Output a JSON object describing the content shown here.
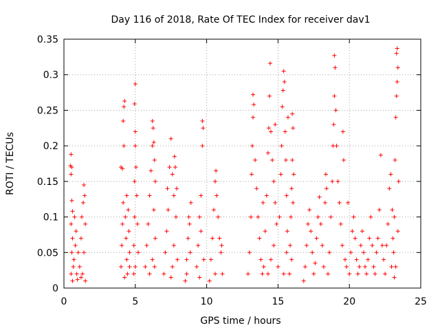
{
  "chart_data": {
    "type": "scatter",
    "title": "Day 116 of 2018, Rate Of TEC Index for receiver dav1",
    "xlabel": "GPS time / hours",
    "ylabel": "ROTI / TECUs",
    "xlim": [
      0,
      25
    ],
    "ylim": [
      0,
      0.35
    ],
    "x_ticks": [
      0,
      5,
      10,
      15,
      20,
      25
    ],
    "x_tick_labels": [
      "0",
      "5",
      "10",
      "15",
      "20",
      "25"
    ],
    "y_ticks": [
      0,
      0.05,
      0.1,
      0.15,
      0.2,
      0.25,
      0.3,
      0.35
    ],
    "y_tick_labels": [
      "0",
      "0.05",
      "0.1",
      "0.15",
      "0.2",
      "0.25",
      "0.3",
      "0.35"
    ],
    "grid": true,
    "marker": "+",
    "marker_color": "#ff0000",
    "series": [
      {
        "name": "ROTI",
        "points": [
          [
            0.45,
            0.172
          ],
          [
            0.5,
            0.188
          ],
          [
            0.55,
            0.17
          ],
          [
            0.5,
            0.16
          ],
          [
            0.55,
            0.123
          ],
          [
            0.6,
            0.108
          ],
          [
            0.5,
            0.09
          ],
          [
            0.6,
            0.07
          ],
          [
            0.55,
            0.05
          ],
          [
            0.65,
            0.03
          ],
          [
            0.5,
            0.02
          ],
          [
            0.6,
            0.01
          ],
          [
            0.7,
            0.04
          ],
          [
            0.8,
            0.06
          ],
          [
            0.75,
            0.1
          ],
          [
            0.85,
            0.08
          ],
          [
            0.9,
            0.02
          ],
          [
            1.0,
            0.05
          ],
          [
            1.1,
            0.03
          ],
          [
            1.2,
            0.07
          ],
          [
            1.25,
            0.1
          ],
          [
            1.35,
            0.12
          ],
          [
            1.4,
            0.145
          ],
          [
            1.45,
            0.13
          ],
          [
            1.5,
            0.09
          ],
          [
            1.4,
            0.05
          ],
          [
            1.3,
            0.02
          ],
          [
            1.5,
            0.01
          ],
          [
            1.2,
            0.015
          ],
          [
            0.95,
            0.012
          ],
          [
            4.0,
            0.03
          ],
          [
            4.05,
            0.06
          ],
          [
            4.1,
            0.09
          ],
          [
            4.15,
            0.12
          ],
          [
            4.0,
            0.17
          ],
          [
            4.1,
            0.168
          ],
          [
            4.2,
            0.2
          ],
          [
            4.15,
            0.235
          ],
          [
            4.2,
            0.255
          ],
          [
            4.25,
            0.263
          ],
          [
            4.3,
            0.1
          ],
          [
            4.35,
            0.07
          ],
          [
            4.4,
            0.04
          ],
          [
            4.45,
            0.02
          ],
          [
            4.5,
            0.11
          ],
          [
            4.55,
            0.08
          ],
          [
            4.6,
            0.05
          ],
          [
            4.4,
            0.13
          ],
          [
            4.25,
            0.015
          ],
          [
            4.6,
            0.03
          ],
          [
            4.9,
            0.06
          ],
          [
            4.95,
            0.1
          ],
          [
            4.95,
            0.15
          ],
          [
            5.0,
            0.2
          ],
          [
            5.0,
            0.22
          ],
          [
            4.95,
            0.259
          ],
          [
            5.0,
            0.287
          ],
          [
            5.05,
            0.17
          ],
          [
            5.1,
            0.13
          ],
          [
            5.15,
            0.09
          ],
          [
            5.2,
            0.05
          ],
          [
            5.0,
            0.03
          ],
          [
            4.9,
            0.02
          ],
          [
            5.7,
            0.03
          ],
          [
            5.8,
            0.06
          ],
          [
            5.9,
            0.09
          ],
          [
            6.0,
            0.13
          ],
          [
            6.1,
            0.165
          ],
          [
            6.2,
            0.2
          ],
          [
            6.25,
            0.225
          ],
          [
            6.2,
            0.235
          ],
          [
            6.3,
            0.205
          ],
          [
            6.35,
            0.18
          ],
          [
            6.4,
            0.15
          ],
          [
            6.3,
            0.11
          ],
          [
            6.4,
            0.07
          ],
          [
            6.2,
            0.04
          ],
          [
            6.0,
            0.02
          ],
          [
            6.35,
            0.03
          ],
          [
            7.0,
            0.02
          ],
          [
            7.1,
            0.05
          ],
          [
            7.2,
            0.08
          ],
          [
            7.3,
            0.11
          ],
          [
            7.25,
            0.14
          ],
          [
            7.4,
            0.17
          ],
          [
            7.5,
            0.21
          ],
          [
            7.6,
            0.16
          ],
          [
            7.7,
            0.13
          ],
          [
            7.75,
            0.185
          ],
          [
            7.8,
            0.17
          ],
          [
            7.9,
            0.14
          ],
          [
            7.85,
            0.1
          ],
          [
            7.7,
            0.06
          ],
          [
            7.6,
            0.03
          ],
          [
            7.95,
            0.04
          ],
          [
            7.5,
            0.015
          ],
          [
            8.5,
            0.01
          ],
          [
            8.6,
            0.04
          ],
          [
            8.7,
            0.07
          ],
          [
            8.8,
            0.09
          ],
          [
            8.75,
            0.1
          ],
          [
            8.9,
            0.12
          ],
          [
            8.85,
            0.05
          ],
          [
            8.6,
            0.02
          ],
          [
            9.3,
            0.03
          ],
          [
            9.4,
            0.06
          ],
          [
            9.5,
            0.1
          ],
          [
            9.6,
            0.13
          ],
          [
            9.7,
            0.2
          ],
          [
            9.75,
            0.225
          ],
          [
            9.7,
            0.235
          ],
          [
            9.6,
            0.08
          ],
          [
            9.8,
            0.04
          ],
          [
            9.5,
            0.015
          ],
          [
            10.2,
            0.01
          ],
          [
            10.3,
            0.04
          ],
          [
            10.4,
            0.07
          ],
          [
            10.5,
            0.11
          ],
          [
            10.6,
            0.15
          ],
          [
            10.65,
            0.165
          ],
          [
            10.7,
            0.13
          ],
          [
            10.8,
            0.1
          ],
          [
            10.9,
            0.07
          ],
          [
            11.0,
            0.05
          ],
          [
            11.1,
            0.02
          ],
          [
            11.05,
            0.06
          ],
          [
            10.6,
            0.02
          ],
          [
            12.9,
            0.02
          ],
          [
            13.0,
            0.05
          ],
          [
            13.1,
            0.1
          ],
          [
            13.15,
            0.16
          ],
          [
            13.2,
            0.2
          ],
          [
            13.25,
            0.24
          ],
          [
            13.3,
            0.258
          ],
          [
            13.25,
            0.272
          ],
          [
            13.4,
            0.18
          ],
          [
            13.5,
            0.14
          ],
          [
            13.6,
            0.1
          ],
          [
            13.7,
            0.07
          ],
          [
            13.8,
            0.04
          ],
          [
            13.9,
            0.02
          ],
          [
            13.95,
            0.12
          ],
          [
            14.0,
            0.03
          ],
          [
            14.1,
            0.08
          ],
          [
            14.2,
            0.13
          ],
          [
            14.3,
            0.19
          ],
          [
            14.35,
            0.225
          ],
          [
            14.4,
            0.27
          ],
          [
            14.45,
            0.316
          ],
          [
            14.5,
            0.22
          ],
          [
            14.6,
            0.18
          ],
          [
            14.7,
            0.15
          ],
          [
            14.8,
            0.12
          ],
          [
            14.9,
            0.09
          ],
          [
            14.7,
            0.06
          ],
          [
            14.5,
            0.04
          ],
          [
            14.3,
            0.02
          ],
          [
            14.8,
            0.23
          ],
          [
            15.0,
            0.03
          ],
          [
            15.1,
            0.1
          ],
          [
            15.2,
            0.16
          ],
          [
            15.25,
            0.2
          ],
          [
            15.3,
            0.255
          ],
          [
            15.35,
            0.278
          ],
          [
            15.4,
            0.305
          ],
          [
            15.45,
            0.29
          ],
          [
            15.5,
            0.22
          ],
          [
            15.55,
            0.18
          ],
          [
            15.6,
            0.13
          ],
          [
            15.65,
            0.08
          ],
          [
            15.6,
            0.05
          ],
          [
            15.4,
            0.02
          ],
          [
            15.7,
            0.24
          ],
          [
            15.8,
            0.02
          ],
          [
            15.85,
            0.06
          ],
          [
            15.9,
            0.1
          ],
          [
            15.95,
            0.14
          ],
          [
            16.0,
            0.18
          ],
          [
            16.05,
            0.225
          ],
          [
            16.0,
            0.245
          ],
          [
            16.1,
            0.16
          ],
          [
            16.05,
            0.12
          ],
          [
            15.95,
            0.04
          ],
          [
            16.8,
            0.01
          ],
          [
            16.9,
            0.03
          ],
          [
            17.0,
            0.06
          ],
          [
            17.1,
            0.09
          ],
          [
            17.2,
            0.11
          ],
          [
            17.3,
            0.08
          ],
          [
            17.4,
            0.05
          ],
          [
            17.5,
            0.02
          ],
          [
            17.6,
            0.035
          ],
          [
            17.7,
            0.07
          ],
          [
            17.8,
            0.1
          ],
          [
            17.9,
            0.128
          ],
          [
            18.0,
            0.09
          ],
          [
            18.1,
            0.06
          ],
          [
            18.2,
            0.03
          ],
          [
            18.3,
            0.12
          ],
          [
            18.35,
            0.16
          ],
          [
            18.4,
            0.14
          ],
          [
            18.5,
            0.02
          ],
          [
            18.6,
            0.05
          ],
          [
            18.7,
            0.1
          ],
          [
            18.8,
            0.15
          ],
          [
            18.85,
            0.2
          ],
          [
            18.9,
            0.23
          ],
          [
            18.95,
            0.27
          ],
          [
            19.0,
            0.31
          ],
          [
            18.95,
            0.327
          ],
          [
            19.05,
            0.25
          ],
          [
            19.1,
            0.2
          ],
          [
            19.2,
            0.15
          ],
          [
            19.3,
            0.12
          ],
          [
            19.4,
            0.09
          ],
          [
            19.5,
            0.06
          ],
          [
            19.6,
            0.18
          ],
          [
            19.55,
            0.22
          ],
          [
            19.7,
            0.04
          ],
          [
            19.8,
            0.03
          ],
          [
            19.9,
            0.12
          ],
          [
            20.0,
            0.02
          ],
          [
            20.1,
            0.05
          ],
          [
            20.2,
            0.08
          ],
          [
            20.3,
            0.1
          ],
          [
            20.4,
            0.07
          ],
          [
            20.5,
            0.04
          ],
          [
            20.6,
            0.02
          ],
          [
            20.7,
            0.03
          ],
          [
            20.8,
            0.06
          ],
          [
            20.9,
            0.08
          ],
          [
            21.0,
            0.05
          ],
          [
            21.1,
            0.03
          ],
          [
            21.2,
            0.02
          ],
          [
            21.3,
            0.04
          ],
          [
            21.4,
            0.07
          ],
          [
            21.5,
            0.1
          ],
          [
            21.6,
            0.06
          ],
          [
            21.7,
            0.03
          ],
          [
            21.8,
            0.02
          ],
          [
            21.9,
            0.05
          ],
          [
            22.0,
            0.07
          ],
          [
            22.1,
            0.11
          ],
          [
            22.2,
            0.187
          ],
          [
            22.3,
            0.06
          ],
          [
            22.4,
            0.04
          ],
          [
            22.5,
            0.02
          ],
          [
            22.6,
            0.06
          ],
          [
            22.7,
            0.09
          ],
          [
            22.8,
            0.14
          ],
          [
            22.9,
            0.16
          ],
          [
            23.0,
            0.11
          ],
          [
            23.05,
            0.07
          ],
          [
            22.95,
            0.03
          ],
          [
            23.1,
            0.05
          ],
          [
            23.15,
            0.1
          ],
          [
            23.2,
            0.18
          ],
          [
            23.25,
            0.24
          ],
          [
            23.3,
            0.27
          ],
          [
            23.35,
            0.29
          ],
          [
            23.4,
            0.31
          ],
          [
            23.3,
            0.33
          ],
          [
            23.35,
            0.337
          ],
          [
            23.45,
            0.15
          ],
          [
            23.4,
            0.08
          ],
          [
            23.25,
            0.03
          ],
          [
            23.15,
            0.015
          ]
        ]
      }
    ]
  }
}
